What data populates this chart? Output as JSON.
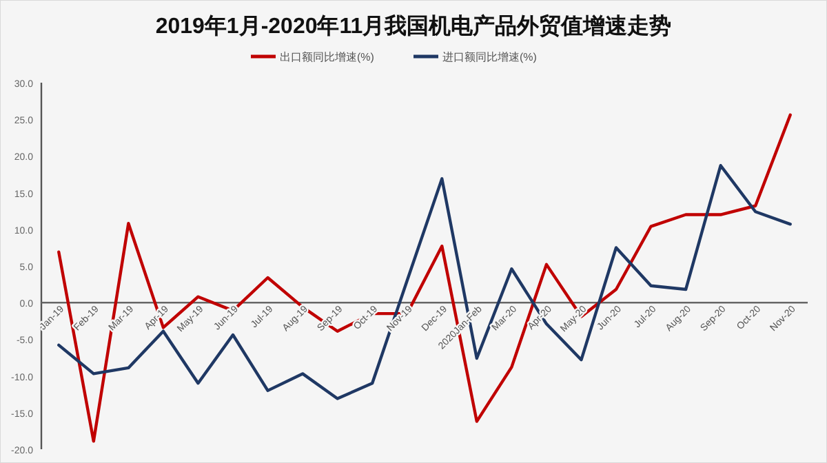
{
  "chart_data": {
    "type": "line",
    "title": "2019年1月-2020年11月我国机电产品外贸值增速走势",
    "categories": [
      "Jan-19",
      "Feb-19",
      "Mar-19",
      "Apr-19",
      "May-19",
      "Jun-19",
      "Jul-19",
      "Aug-19",
      "Sep-19",
      "Oct-19",
      "Nov-19",
      "Dec-19",
      "2020Jan-Feb",
      "Mar-20",
      "Apr-20",
      "May-20",
      "Jun-20",
      "Jul-20",
      "Aug-20",
      "Sep-20",
      "Oct-20",
      "Nov-20"
    ],
    "series": [
      {
        "name": "出口额同比增速(%)",
        "color": "#c00000",
        "values": [
          6.9,
          -18.9,
          10.8,
          -3.4,
          0.8,
          -1.1,
          3.4,
          -0.6,
          -3.9,
          -1.5,
          -1.5,
          7.7,
          -16.2,
          -8.8,
          5.2,
          -1.9,
          1.8,
          10.4,
          12.0,
          12.0,
          13.2,
          25.6
        ]
      },
      {
        "name": "进口额同比增速(%)",
        "color": "#1f3864",
        "values": [
          -5.8,
          -9.7,
          -8.9,
          -3.9,
          -11.0,
          -4.4,
          -12.0,
          -9.7,
          -13.1,
          -11.0,
          3.0,
          16.9,
          -7.6,
          4.6,
          -2.9,
          -7.8,
          7.5,
          2.3,
          1.8,
          18.7,
          12.4,
          10.7
        ]
      }
    ],
    "ylim": [
      -20,
      30
    ],
    "yticks": [
      {
        "value": -20,
        "label": "-20.0"
      },
      {
        "value": -15,
        "label": "-15.0"
      },
      {
        "value": -10,
        "label": "-10.0"
      },
      {
        "value": -5,
        "label": "-5.0"
      },
      {
        "value": 0,
        "label": "0.0"
      },
      {
        "value": 5,
        "label": "5.0"
      },
      {
        "value": 10,
        "label": "10.0"
      },
      {
        "value": 15,
        "label": "15.0"
      },
      {
        "value": 20,
        "label": "20.0"
      },
      {
        "value": 25,
        "label": "25.0"
      },
      {
        "value": 30,
        "label": "30.0"
      }
    ],
    "legend": "top",
    "grid": false,
    "marker": "none",
    "line_style": "solid"
  }
}
